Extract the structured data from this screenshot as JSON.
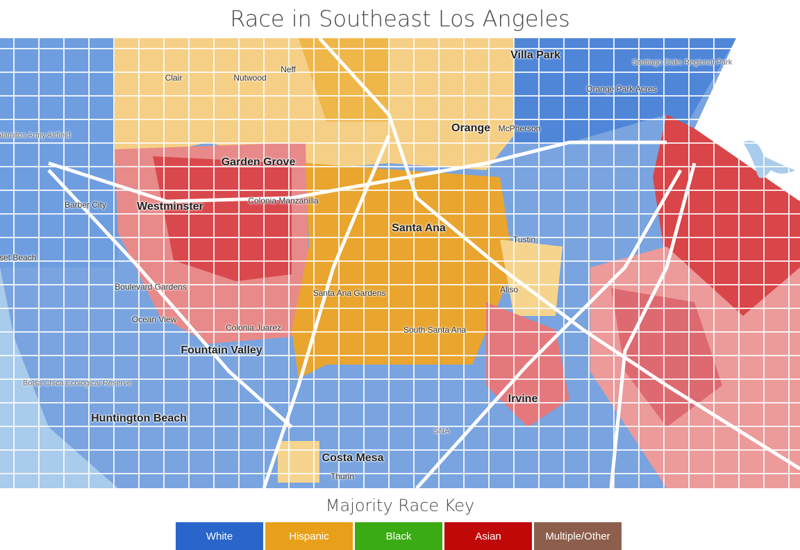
{
  "title": "Race in Southeast Los Angeles",
  "map": {
    "places": [
      {
        "name": "Villa Park",
        "size": "big"
      },
      {
        "name": "Clair",
        "size": "small"
      },
      {
        "name": "Nutwood",
        "size": "small"
      },
      {
        "name": "Neff",
        "size": "small"
      },
      {
        "name": "Orange",
        "size": "big"
      },
      {
        "name": "McPherson",
        "size": "small"
      },
      {
        "name": "Orange Park Acres",
        "size": "small"
      },
      {
        "name": "Santiago Oaks Regional Park",
        "size": "poi"
      },
      {
        "name": "Los Alamitos Army Airfield",
        "size": "poi"
      },
      {
        "name": "Garden Grove",
        "size": "big"
      },
      {
        "name": "Barber City",
        "size": "small"
      },
      {
        "name": "Westminster",
        "size": "big"
      },
      {
        "name": "Colonia Manzanilla",
        "size": "small"
      },
      {
        "name": "Santa Ana",
        "size": "big"
      },
      {
        "name": "Tustin",
        "size": "small"
      },
      {
        "name": "Sunset Beach",
        "size": "small"
      },
      {
        "name": "Boulevard Gardens",
        "size": "small"
      },
      {
        "name": "Santa Ana Gardens",
        "size": "small"
      },
      {
        "name": "Aliso",
        "size": "small"
      },
      {
        "name": "Ocean View",
        "size": "small"
      },
      {
        "name": "Colonia Juarez",
        "size": "small"
      },
      {
        "name": "South Santa Ana",
        "size": "small"
      },
      {
        "name": "Fountain Valley",
        "size": "big"
      },
      {
        "name": "Bolsa Chica Ecological Reserve",
        "size": "poi"
      },
      {
        "name": "Irvine",
        "size": "big"
      },
      {
        "name": "Huntington Beach",
        "size": "big"
      },
      {
        "name": "SNA",
        "size": "poi"
      },
      {
        "name": "Costa Mesa",
        "size": "big"
      },
      {
        "name": "Thurin",
        "size": "small"
      }
    ],
    "colors": {
      "white": "#7aa5e2",
      "hispanic": "#f3c46e",
      "black": "#3aab1c",
      "asian": "#e05c5c",
      "water": "#a9cbec"
    }
  },
  "key": {
    "title": "Majority Race Key",
    "items": [
      {
        "label": "White",
        "color": "#2a66c9"
      },
      {
        "label": "Hispanic",
        "color": "#e8a01a"
      },
      {
        "label": "Black",
        "color": "#3aab14"
      },
      {
        "label": "Asian",
        "color": "#c00808"
      },
      {
        "label": "Multiple/Other",
        "color": "#8e5e4c"
      }
    ]
  }
}
